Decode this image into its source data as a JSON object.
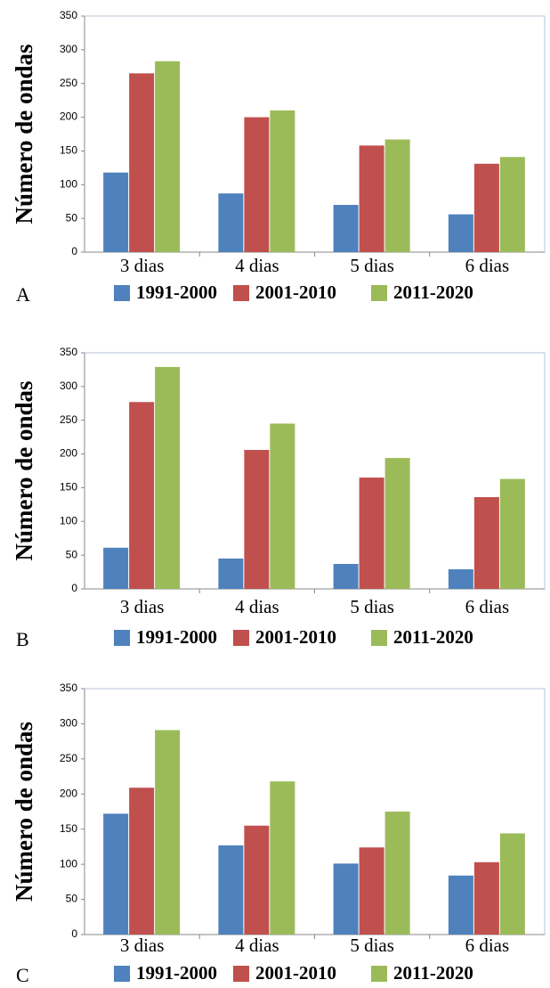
{
  "chart_data": [
    {
      "type": "bar",
      "label": "A",
      "y_label": "Número de ondas",
      "categories": [
        "3 dias",
        "4 dias",
        "5 dias",
        "6 dias"
      ],
      "series": [
        {
          "name": "1991-2000",
          "color": "#4f81bd",
          "values": [
            118,
            87,
            70,
            56
          ]
        },
        {
          "name": "2001-2010",
          "color": "#c0504d",
          "values": [
            265,
            200,
            158,
            131
          ]
        },
        {
          "name": "2011-2020",
          "color": "#9bbb59",
          "values": [
            283,
            210,
            167,
            141
          ]
        }
      ],
      "ylim": [
        0,
        350
      ],
      "yticks": [
        0,
        50,
        100,
        150,
        200,
        250,
        300,
        350
      ],
      "grid": false
    },
    {
      "type": "bar",
      "label": "B",
      "y_label": "Número de ondas",
      "categories": [
        "3 dias",
        "4 dias",
        "5 dias",
        "6 dias"
      ],
      "series": [
        {
          "name": "1991-2000",
          "color": "#4f81bd",
          "values": [
            61,
            45,
            37,
            29
          ]
        },
        {
          "name": "2001-2010",
          "color": "#c0504d",
          "values": [
            277,
            206,
            165,
            136
          ]
        },
        {
          "name": "2011-2020",
          "color": "#9bbb59",
          "values": [
            329,
            245,
            194,
            163
          ]
        }
      ],
      "ylim": [
        0,
        350
      ],
      "yticks": [
        0,
        50,
        100,
        150,
        200,
        250,
        300,
        350
      ],
      "grid": false
    },
    {
      "type": "bar",
      "label": "C",
      "y_label": "Número de ondas",
      "categories": [
        "3 dias",
        "4 dias",
        "5 dias",
        "6 dias"
      ],
      "series": [
        {
          "name": "1991-2000",
          "color": "#4f81bd",
          "values": [
            172,
            127,
            101,
            84
          ]
        },
        {
          "name": "2001-2010",
          "color": "#c0504d",
          "values": [
            209,
            155,
            124,
            103
          ]
        },
        {
          "name": "2011-2020",
          "color": "#9bbb59",
          "values": [
            291,
            218,
            175,
            144
          ]
        }
      ],
      "ylim": [
        0,
        350
      ],
      "yticks": [
        0,
        50,
        100,
        150,
        200,
        250,
        300,
        350
      ],
      "grid": false
    }
  ]
}
